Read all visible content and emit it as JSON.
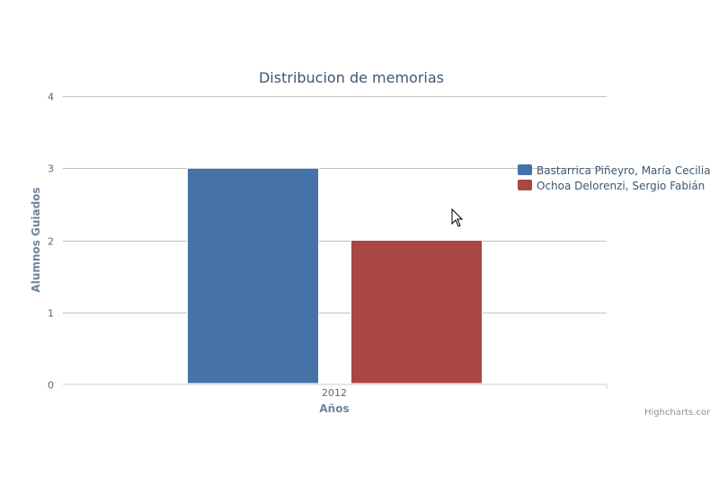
{
  "chart_data": {
    "type": "bar",
    "title": "Distribucion de memorias",
    "xlabel": "Años",
    "ylabel": "Alumnos Guiados",
    "categories": [
      "2012"
    ],
    "series": [
      {
        "name": "Bastarrica Piñeyro, María Cecilia",
        "values": [
          3
        ],
        "color": "#4572a7"
      },
      {
        "name": "Ochoa Delorenzi, Sergio Fabián",
        "values": [
          2
        ],
        "color": "#aa4643"
      }
    ],
    "ylim": [
      0,
      4
    ],
    "yticks": [
      0,
      1,
      2,
      3,
      4
    ],
    "grid": true,
    "legend_position": "right"
  },
  "credits": "Highcharts.com",
  "cursor": "arrow-cursor"
}
